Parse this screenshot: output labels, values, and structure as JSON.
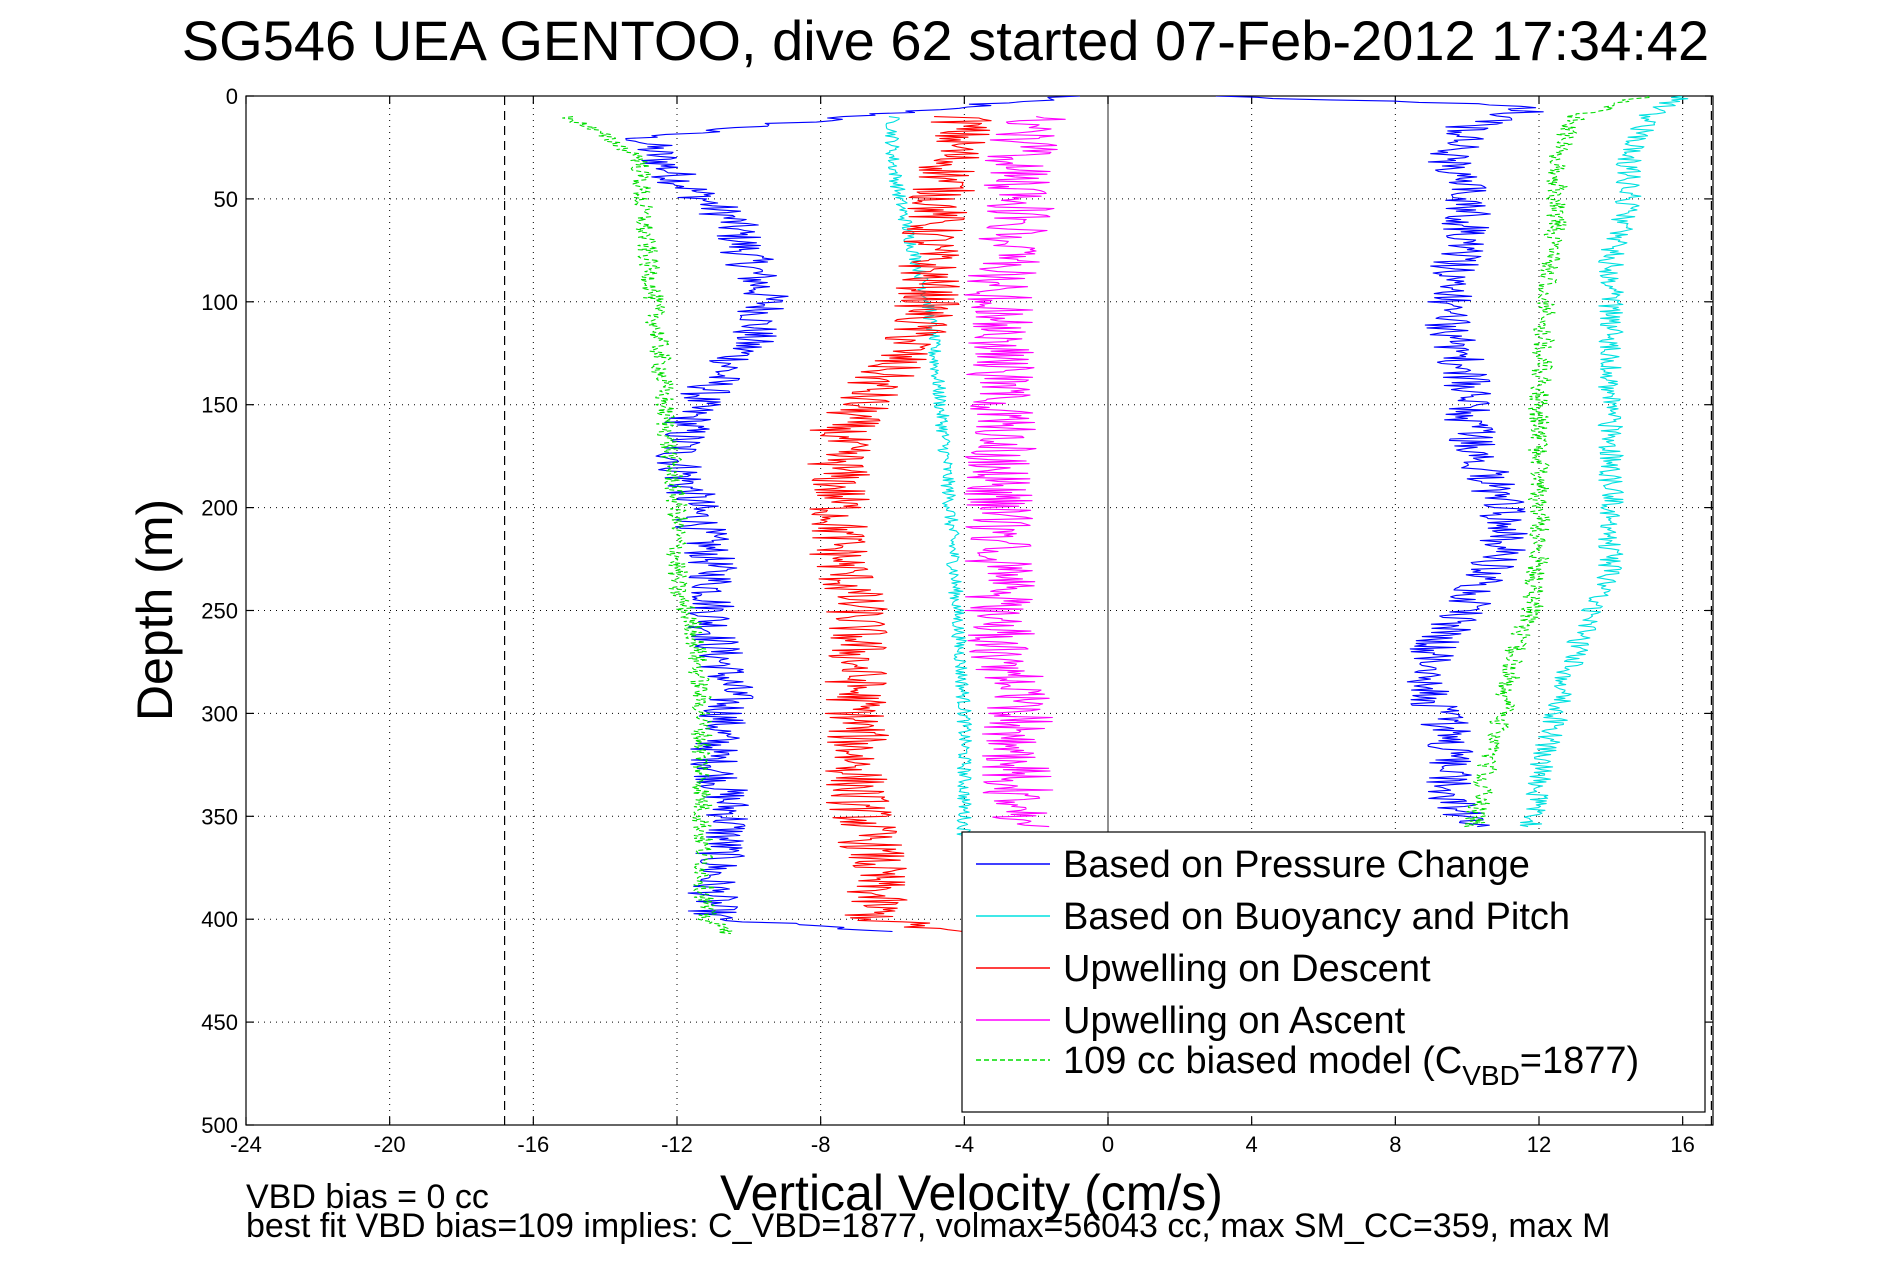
{
  "chart_data": {
    "type": "line",
    "title": "SG546 UEA GENTOO, dive 62 started 07-Feb-2012 17:34:42",
    "xlabel": "Vertical Velocity (cm/s)",
    "ylabel": "Depth (m)",
    "xlim": [
      -24,
      17
    ],
    "ylim": [
      500,
      0
    ],
    "y_reversed": true,
    "xticks": [
      -24,
      -20,
      -16,
      -12,
      -8,
      -4,
      0,
      4,
      8,
      12,
      16
    ],
    "yticks": [
      0,
      50,
      100,
      150,
      200,
      250,
      300,
      350,
      400,
      450,
      500
    ],
    "grid": true,
    "vlines_dashed": [
      -16.8,
      16.8
    ],
    "vline_solid": 0,
    "legend_position": "bottom-right",
    "noise_amplitude_note": "series values are approximate profile means read off the plot",
    "series": [
      {
        "name": "Based on Pressure Change",
        "color": "#0000ff",
        "style": "solid",
        "noise": 0.7,
        "points": [
          [
            -1,
            0
          ],
          [
            -13,
            20
          ],
          [
            -12,
            40
          ],
          [
            -10.5,
            60
          ],
          [
            -10,
            80
          ],
          [
            -9.5,
            100
          ],
          [
            -10,
            120
          ],
          [
            -11.5,
            150
          ],
          [
            -12,
            175
          ],
          [
            -11.5,
            200
          ],
          [
            -11,
            230
          ],
          [
            -11,
            260
          ],
          [
            -10.5,
            290
          ],
          [
            -11,
            320
          ],
          [
            -10.5,
            350
          ],
          [
            -11,
            380
          ],
          [
            -11,
            400
          ],
          [
            -6,
            406
          ]
        ]
      },
      {
        "name": "Based on Pressure Change",
        "color": "#0000ff",
        "style": "solid",
        "noise": 0.7,
        "points": [
          [
            10,
            355
          ],
          [
            9.5,
            340
          ],
          [
            9.5,
            310
          ],
          [
            9,
            290
          ],
          [
            9,
            270
          ],
          [
            10,
            250
          ],
          [
            11,
            220
          ],
          [
            11,
            200
          ],
          [
            10.5,
            180
          ],
          [
            10,
            160
          ],
          [
            10,
            140
          ],
          [
            9.5,
            110
          ],
          [
            9.5,
            90
          ],
          [
            10,
            70
          ],
          [
            10,
            50
          ],
          [
            9.5,
            30
          ],
          [
            10,
            15
          ],
          [
            12,
            5
          ],
          [
            3,
            0
          ]
        ]
      },
      {
        "name": "Based on Buoyancy and Pitch",
        "color": "#00e0e0",
        "style": "solid",
        "noise": 0.2,
        "points": [
          [
            -6,
            10
          ],
          [
            -6,
            30
          ],
          [
            -5.8,
            50
          ],
          [
            -5.5,
            70
          ],
          [
            -5,
            100
          ],
          [
            -4.8,
            130
          ],
          [
            -4.6,
            160
          ],
          [
            -4.4,
            200
          ],
          [
            -4.2,
            250
          ],
          [
            -4,
            300
          ],
          [
            -4,
            340
          ],
          [
            -4,
            360
          ]
        ]
      },
      {
        "name": "Based on Buoyancy and Pitch",
        "color": "#00e0e0",
        "style": "solid",
        "noise": 0.35,
        "points": [
          [
            11.8,
            355
          ],
          [
            12,
            330
          ],
          [
            12.5,
            300
          ],
          [
            13,
            270
          ],
          [
            13.5,
            250
          ],
          [
            14,
            230
          ],
          [
            14,
            200
          ],
          [
            14,
            170
          ],
          [
            14,
            140
          ],
          [
            14,
            110
          ],
          [
            14,
            80
          ],
          [
            14.5,
            50
          ],
          [
            14.5,
            30
          ],
          [
            15,
            10
          ],
          [
            16,
            0
          ]
        ]
      },
      {
        "name": "Upwelling on Descent",
        "color": "#ff0000",
        "style": "solid",
        "noise": 0.9,
        "points": [
          [
            -4,
            10
          ],
          [
            -4.5,
            40
          ],
          [
            -5,
            70
          ],
          [
            -5,
            100
          ],
          [
            -5.5,
            120
          ],
          [
            -6.5,
            140
          ],
          [
            -7.5,
            165
          ],
          [
            -7.5,
            190
          ],
          [
            -7.5,
            220
          ],
          [
            -7,
            250
          ],
          [
            -7,
            280
          ],
          [
            -7,
            310
          ],
          [
            -7,
            340
          ],
          [
            -6.5,
            370
          ],
          [
            -6.5,
            400
          ],
          [
            -4,
            407
          ]
        ]
      },
      {
        "name": "Upwelling on Ascent",
        "color": "#ff00ff",
        "style": "solid",
        "noise": 1.0,
        "points": [
          [
            -2.5,
            355
          ],
          [
            -2.5,
            330
          ],
          [
            -2.5,
            300
          ],
          [
            -3,
            270
          ],
          [
            -3,
            240
          ],
          [
            -3,
            210
          ],
          [
            -3,
            180
          ],
          [
            -3,
            150
          ],
          [
            -3,
            120
          ],
          [
            -3,
            90
          ],
          [
            -2.5,
            60
          ],
          [
            -2.5,
            30
          ],
          [
            -2,
            10
          ]
        ]
      },
      {
        "name": "109 cc biased model (C_VBD=1877)",
        "color": "#00dd00",
        "style": "dashed",
        "noise": 0.3,
        "points": [
          [
            -15,
            10
          ],
          [
            -13,
            30
          ],
          [
            -13,
            50
          ],
          [
            -12.8,
            80
          ],
          [
            -12.5,
            120
          ],
          [
            -12.3,
            160
          ],
          [
            -12,
            200
          ],
          [
            -12,
            240
          ],
          [
            -11.5,
            260
          ],
          [
            -11.3,
            300
          ],
          [
            -11.3,
            350
          ],
          [
            -11.2,
            400
          ],
          [
            -10.5,
            407
          ]
        ]
      },
      {
        "name": "109 cc biased model (C_VBD=1877)",
        "color": "#00dd00",
        "style": "dashed",
        "noise": 0.3,
        "points": [
          [
            10.2,
            355
          ],
          [
            10.5,
            330
          ],
          [
            11,
            300
          ],
          [
            11.3,
            270
          ],
          [
            11.8,
            250
          ],
          [
            12,
            220
          ],
          [
            12,
            180
          ],
          [
            12,
            150
          ],
          [
            12.2,
            100
          ],
          [
            12.5,
            60
          ],
          [
            12.5,
            30
          ],
          [
            13,
            10
          ],
          [
            15,
            0
          ]
        ]
      }
    ],
    "legend": [
      {
        "label": "Based on Pressure Change",
        "color": "#0000ff",
        "dash": false
      },
      {
        "label": "Based on Buoyancy and Pitch",
        "color": "#00e0e0",
        "dash": false
      },
      {
        "label": "Upwelling on Descent",
        "color": "#ff0000",
        "dash": false
      },
      {
        "label": "Upwelling on Ascent",
        "color": "#ff00ff",
        "dash": false
      },
      {
        "label": "109 cc biased model (C",
        "sub": "VBD",
        "suffix": "=1877)",
        "color": "#00dd00",
        "dash": true
      }
    ]
  },
  "footer": {
    "line1": "VBD bias = 0 cc",
    "line2": "best fit VBD bias=109 implies: C_VBD=1877, volmax=56043 cc, max SM_CC=359, max M"
  }
}
